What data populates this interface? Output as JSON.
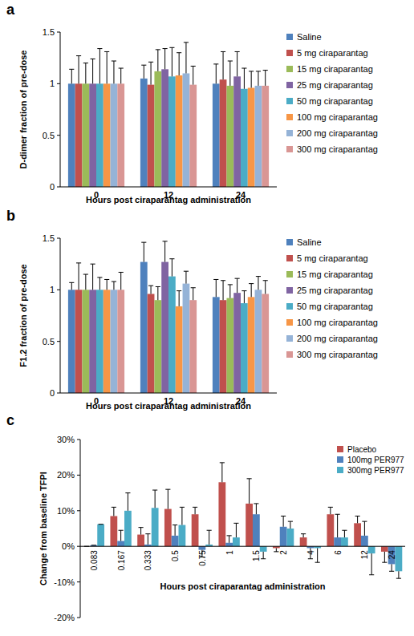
{
  "chart_data": [
    {
      "type": "bar",
      "title": "a",
      "y_label": "D-dimer fraction of pre-dose",
      "x_label": "Hours post ciraparantag administration",
      "categories": [
        "0",
        "12",
        "24"
      ],
      "ylim": [
        0,
        1.5
      ],
      "yticks": [
        0,
        0.5,
        1,
        1.5
      ],
      "grid": false,
      "legend": "right",
      "series": [
        {
          "name": "Saline",
          "color": "#4f81bd",
          "values": [
            1,
            1.05,
            1.0
          ],
          "errors": [
            0.14,
            0.13,
            0.19
          ]
        },
        {
          "name": "5 mg ciraparantag",
          "color": "#c0504d",
          "values": [
            1,
            0.99,
            1.04
          ],
          "errors": [
            0.27,
            0.22,
            0.27
          ]
        },
        {
          "name": "15 mg ciraparantag",
          "color": "#9bbb59",
          "values": [
            1,
            1.12,
            0.98
          ],
          "errors": [
            0.2,
            0.21,
            0.24
          ]
        },
        {
          "name": "25 mg ciraparantag",
          "color": "#8064a2",
          "values": [
            1,
            1.14,
            1.07
          ],
          "errors": [
            0.24,
            0.2,
            0.24
          ]
        },
        {
          "name": "50 mg ciraparantag",
          "color": "#4bacc6",
          "values": [
            1,
            1.07,
            0.95
          ],
          "errors": [
            0.34,
            0.28,
            0.2
          ]
        },
        {
          "name": "100 mg ciraparantag",
          "color": "#f79646",
          "values": [
            1,
            1.08,
            0.96
          ],
          "errors": [
            0.31,
            0.22,
            0.16
          ]
        },
        {
          "name": "200 mg ciraparantag",
          "color": "#95b3d7",
          "values": [
            1,
            1.1,
            0.98
          ],
          "errors": [
            0.22,
            0.3,
            0.14
          ]
        },
        {
          "name": "300 mg ciraparantag",
          "color": "#d99694",
          "values": [
            1,
            0.99,
            0.98
          ],
          "errors": [
            0.15,
            0.18,
            0.15
          ]
        }
      ]
    },
    {
      "type": "bar",
      "title": "b",
      "y_label": "F1.2 fraction of pre-dose",
      "x_label": "Hours post ciraparantag administration",
      "categories": [
        "0",
        "12",
        "24"
      ],
      "ylim": [
        0,
        1.5
      ],
      "yticks": [
        0,
        0.5,
        1,
        1.5
      ],
      "grid": false,
      "legend": "right",
      "series": [
        {
          "name": "Saline",
          "color": "#4f81bd",
          "values": [
            1,
            1.27,
            0.93
          ],
          "errors": [
            0.07,
            0.19,
            0.17
          ]
        },
        {
          "name": "5 mg ciraparantag",
          "color": "#c0504d",
          "values": [
            1,
            0.96,
            0.9
          ],
          "errors": [
            0.26,
            0.08,
            0.19
          ]
        },
        {
          "name": "15 mg ciraparantag",
          "color": "#9bbb59",
          "values": [
            1,
            0.9,
            0.92
          ],
          "errors": [
            0.15,
            0.13,
            0.13
          ]
        },
        {
          "name": "25 mg ciraparantag",
          "color": "#8064a2",
          "values": [
            1,
            1.27,
            0.97
          ],
          "errors": [
            0.25,
            0.2,
            0.14
          ]
        },
        {
          "name": "50 mg ciraparantag",
          "color": "#4bacc6",
          "values": [
            1,
            1.13,
            0.87
          ],
          "errors": [
            0.12,
            0.17,
            0.12
          ]
        },
        {
          "name": "100 mg ciraparantag",
          "color": "#f79646",
          "values": [
            1,
            0.84,
            0.93
          ],
          "errors": [
            0.1,
            0.15,
            0.13
          ]
        },
        {
          "name": "200 mg ciraparantag",
          "color": "#95b3d7",
          "values": [
            1,
            1.06,
            1.0
          ],
          "errors": [
            0.08,
            0.12,
            0.13
          ]
        },
        {
          "name": "300 mg ciraparantag",
          "color": "#d99694",
          "values": [
            1,
            0.9,
            0.96
          ],
          "errors": [
            0.17,
            0.12,
            0.13
          ]
        }
      ]
    },
    {
      "type": "bar",
      "title": "c",
      "y_label": "Change from baseline TFPI",
      "x_label": "Hours post ciraparantag administration",
      "categories": [
        "0.083",
        "0.167",
        "0.333",
        "0.5",
        "0.75",
        "1",
        "1.5",
        "2",
        "4",
        "6",
        "12",
        "24"
      ],
      "ylim": [
        -20,
        30
      ],
      "yticks": [
        {
          "value": -20,
          "label": "-20%"
        },
        {
          "value": -10,
          "label": "-10%"
        },
        {
          "value": 0,
          "label": "0%"
        },
        {
          "value": 10,
          "label": "10%"
        },
        {
          "value": 20,
          "label": "20%"
        },
        {
          "value": 30,
          "label": "30%"
        }
      ],
      "grid": false,
      "legend": "top-right",
      "series": [
        {
          "name": "Placebo",
          "color": "#c0504d",
          "values": [
            0,
            8.5,
            3.3,
            10.5,
            9,
            18,
            12,
            -0.5,
            2.5,
            9,
            6.5,
            -1.5
          ],
          "errors": [
            0,
            2.5,
            2,
            5.5,
            2,
            5.5,
            7,
            1,
            1,
            2,
            2,
            3
          ]
        },
        {
          "name": "100mg PER977",
          "color": "#4f81bd",
          "values": [
            0.3,
            1.5,
            0.5,
            3,
            -1,
            1,
            9,
            5.5,
            -0.5,
            2.5,
            3,
            -5
          ],
          "errors": [
            0,
            3,
            3,
            3,
            2,
            2,
            3,
            3,
            3,
            6.5,
            4,
            2
          ]
        },
        {
          "name": "300mg PER977",
          "color": "#4bacc6",
          "values": [
            6.2,
            10,
            10.8,
            6,
            0.5,
            2.5,
            -1.5,
            5,
            -0.5,
            2.5,
            -2,
            -7
          ],
          "errors": [
            0,
            5,
            5,
            5,
            4,
            4,
            2,
            2,
            4,
            2,
            6,
            2
          ]
        }
      ]
    }
  ]
}
